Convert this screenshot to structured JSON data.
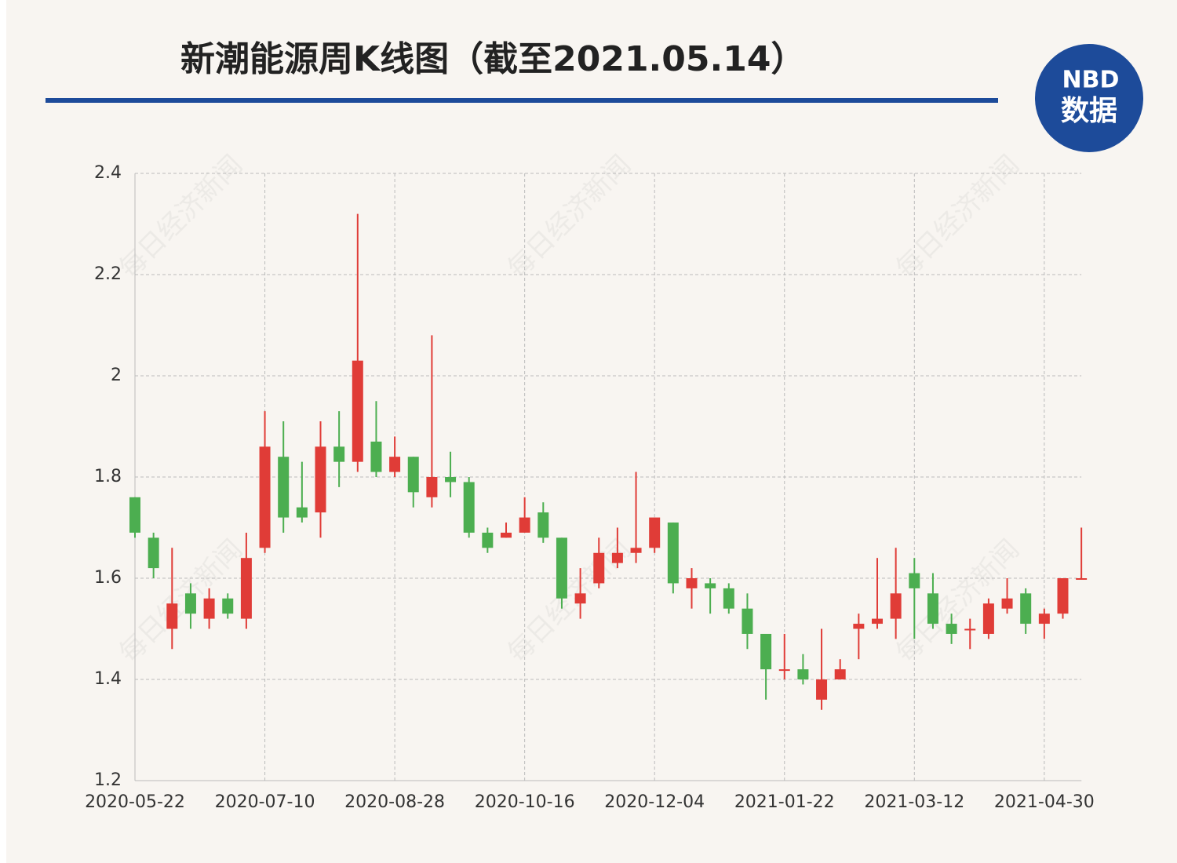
{
  "chart_data": {
    "type": "candlestick",
    "title": "新潮能源周K线图（截至2021.05.14）",
    "logo": {
      "top": "NBD",
      "bottom": "数据"
    },
    "watermark": "每日经济新闻",
    "categories": [
      "2020-05-22",
      null,
      null,
      null,
      null,
      null,
      null,
      "2020-07-10",
      null,
      null,
      null,
      null,
      null,
      null,
      "2020-08-28",
      null,
      null,
      null,
      null,
      null,
      null,
      "2020-10-16",
      null,
      null,
      null,
      null,
      null,
      null,
      "2020-12-04",
      null,
      null,
      null,
      null,
      null,
      null,
      "2021-01-22",
      null,
      null,
      null,
      null,
      null,
      null,
      "2021-03-12",
      null,
      null,
      null,
      null,
      null,
      null,
      "2021-04-30",
      null,
      null
    ],
    "open": [
      1.76,
      1.68,
      1.5,
      1.57,
      1.52,
      1.56,
      1.52,
      1.66,
      1.84,
      1.74,
      1.73,
      1.86,
      1.83,
      1.87,
      1.81,
      1.84,
      1.76,
      1.8,
      1.79,
      1.69,
      1.68,
      1.69,
      1.73,
      1.68,
      1.55,
      1.59,
      1.63,
      1.65,
      1.66,
      1.71,
      1.58,
      1.59,
      1.58,
      1.54,
      1.49,
      1.42,
      1.42,
      1.36,
      1.4,
      1.5,
      1.51,
      1.52,
      1.61,
      1.57,
      1.51,
      1.5,
      1.49,
      1.54,
      1.57,
      1.51,
      1.53,
      1.6
    ],
    "high": [
      1.76,
      1.69,
      1.66,
      1.59,
      1.58,
      1.57,
      1.69,
      1.93,
      1.91,
      1.83,
      1.91,
      1.93,
      2.32,
      1.95,
      1.88,
      1.84,
      2.08,
      1.85,
      1.8,
      1.7,
      1.71,
      1.76,
      1.75,
      1.68,
      1.62,
      1.68,
      1.7,
      1.81,
      1.72,
      1.71,
      1.62,
      1.6,
      1.59,
      1.57,
      1.49,
      1.49,
      1.45,
      1.5,
      1.44,
      1.53,
      1.64,
      1.66,
      1.64,
      1.61,
      1.53,
      1.52,
      1.56,
      1.6,
      1.58,
      1.54,
      1.6,
      1.7
    ],
    "low": [
      1.68,
      1.6,
      1.46,
      1.5,
      1.5,
      1.52,
      1.5,
      1.65,
      1.69,
      1.71,
      1.68,
      1.78,
      1.81,
      1.8,
      1.8,
      1.74,
      1.74,
      1.76,
      1.68,
      1.65,
      1.68,
      1.69,
      1.67,
      1.54,
      1.52,
      1.58,
      1.62,
      1.63,
      1.65,
      1.57,
      1.54,
      1.53,
      1.53,
      1.46,
      1.36,
      1.4,
      1.39,
      1.34,
      1.4,
      1.44,
      1.5,
      1.48,
      1.48,
      1.5,
      1.47,
      1.46,
      1.48,
      1.53,
      1.49,
      1.48,
      1.52,
      1.6
    ],
    "close": [
      1.69,
      1.62,
      1.55,
      1.53,
      1.56,
      1.53,
      1.64,
      1.86,
      1.72,
      1.72,
      1.86,
      1.83,
      2.03,
      1.81,
      1.84,
      1.77,
      1.8,
      1.79,
      1.69,
      1.66,
      1.69,
      1.72,
      1.68,
      1.56,
      1.57,
      1.65,
      1.65,
      1.66,
      1.72,
      1.59,
      1.6,
      1.58,
      1.54,
      1.49,
      1.42,
      1.42,
      1.4,
      1.4,
      1.42,
      1.51,
      1.52,
      1.57,
      1.58,
      1.51,
      1.49,
      1.5,
      1.55,
      1.56,
      1.51,
      1.53,
      1.6,
      1.6
    ],
    "up_color": "#e03c37",
    "down_color": "#4cae50",
    "ylim": [
      1.2,
      2.4
    ],
    "yticks": [
      1.2,
      1.4,
      1.6,
      1.8,
      2,
      2.2,
      2.4
    ],
    "grid": true
  }
}
